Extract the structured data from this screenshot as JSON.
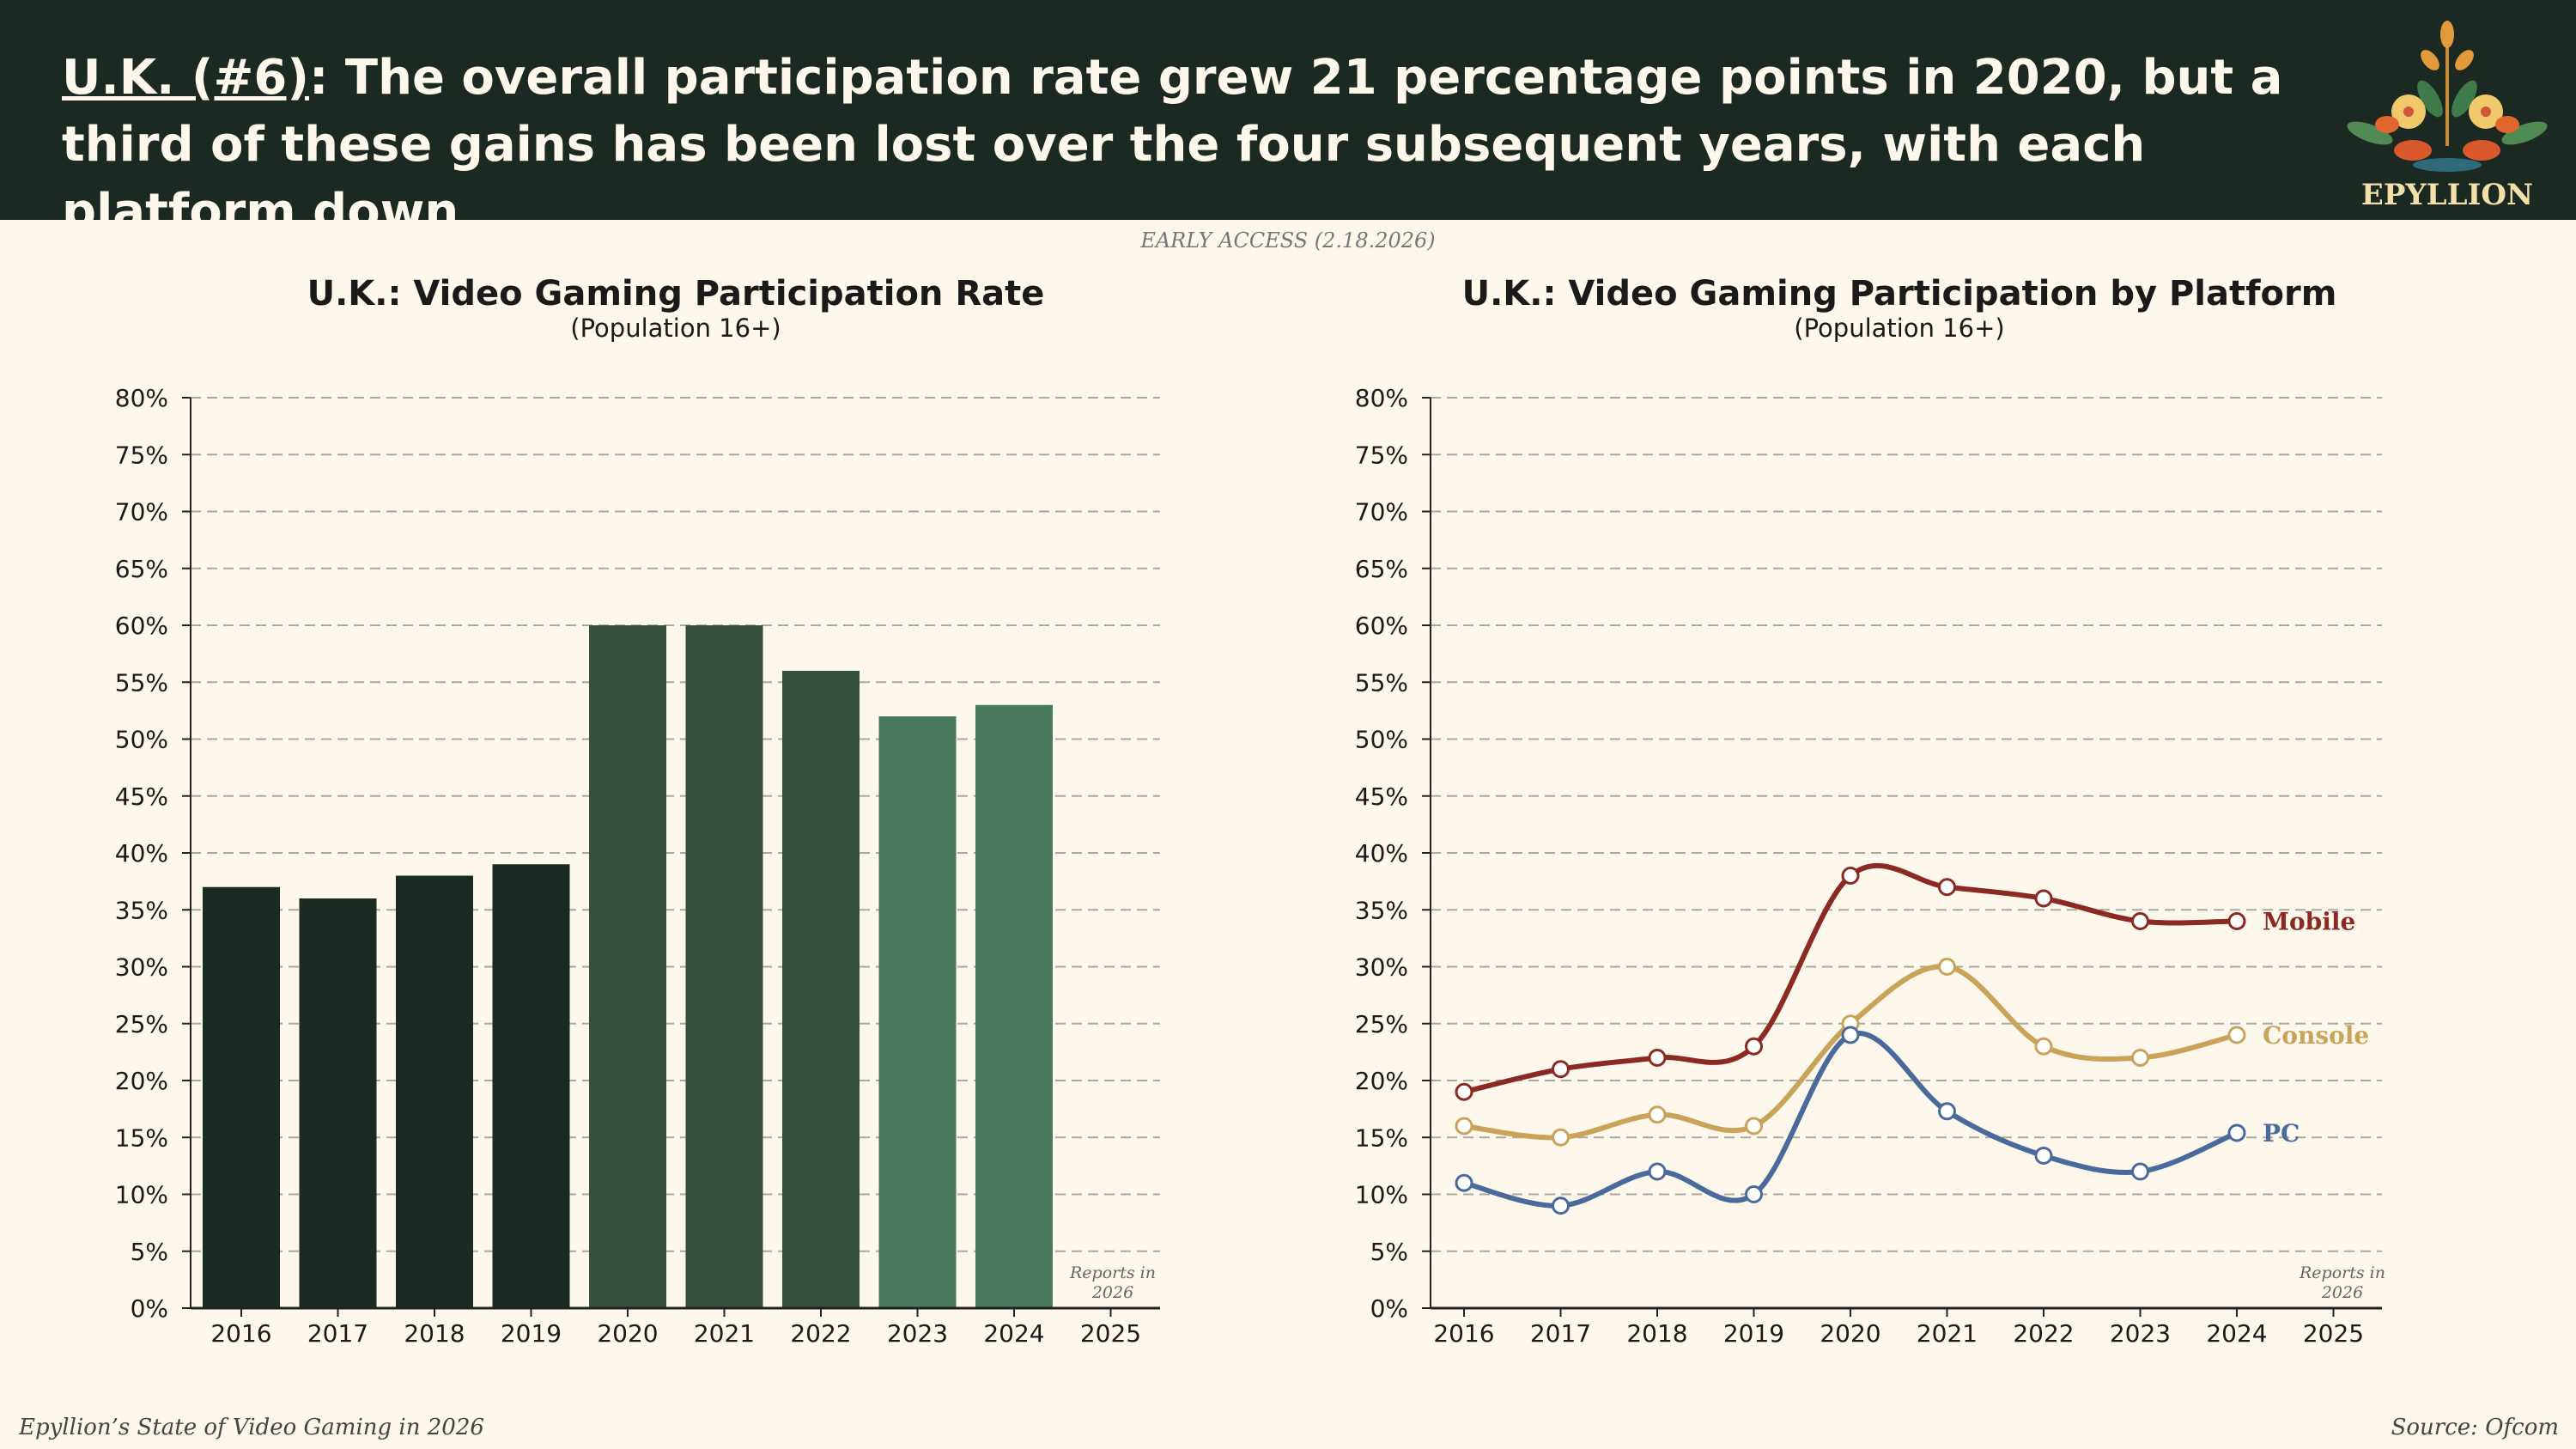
{
  "header": {
    "tag": "U.K. (#6)",
    "headline": ": The overall participation rate grew 21 percentage points in 2020, but a third of these gains has been lost over the four subsequent years, with each platform down",
    "background": "#1c2822"
  },
  "logo": {
    "text": "EPYLLION"
  },
  "early_access": "EARLY ACCESS (2.18.2026)",
  "footer": {
    "left": "Epyllion’s State of Video Gaming in 2026",
    "right": "Source: Ofcom"
  },
  "chart_data": [
    {
      "type": "bar",
      "title": "U.K.: Video Gaming Participation Rate",
      "subtitle": "(Population 16+)",
      "categories": [
        "2016",
        "2017",
        "2018",
        "2019",
        "2020",
        "2021",
        "2022",
        "2023",
        "2024",
        "2025"
      ],
      "values": [
        37,
        36,
        38,
        39,
        60,
        60,
        56,
        52,
        53,
        null
      ],
      "bar_colors": [
        "#1b2a22",
        "#1b2a22",
        "#1b2a22",
        "#1b2a22",
        "#34503f",
        "#34503f",
        "#34503f",
        "#4a7a5f",
        "#4a7a5f",
        null
      ],
      "ylim": [
        0,
        80
      ],
      "yticks": [
        "0%",
        "5%",
        "10%",
        "15%",
        "20%",
        "25%",
        "30%",
        "35%",
        "40%",
        "45%",
        "50%",
        "55%",
        "60%",
        "65%",
        "70%",
        "75%",
        "80%"
      ],
      "grid": true,
      "annotation": [
        "Reports in",
        "2026"
      ]
    },
    {
      "type": "line",
      "title": "U.K.: Video Gaming Participation by Platform",
      "subtitle": "(Population 16+)",
      "categories": [
        "2016",
        "2017",
        "2018",
        "2019",
        "2020",
        "2021",
        "2022",
        "2023",
        "2024",
        "2025"
      ],
      "series": [
        {
          "name": "Mobile",
          "color": "#8b2a24",
          "values": [
            19,
            21,
            22,
            23,
            38,
            37,
            36,
            34,
            34,
            null
          ]
        },
        {
          "name": "Console",
          "color": "#c9a35a",
          "values": [
            16,
            15,
            17,
            16,
            25,
            30,
            23,
            22,
            24,
            null
          ]
        },
        {
          "name": "PC",
          "color": "#4a6a9c",
          "values": [
            11,
            9,
            12,
            10,
            24,
            17.3,
            13.4,
            12,
            15.4,
            null
          ]
        }
      ],
      "ylim": [
        0,
        80
      ],
      "yticks": [
        "0%",
        "5%",
        "10%",
        "15%",
        "20%",
        "25%",
        "30%",
        "35%",
        "40%",
        "45%",
        "50%",
        "55%",
        "60%",
        "65%",
        "70%",
        "75%",
        "80%"
      ],
      "grid": true,
      "legend": "inline-right",
      "annotation": [
        "Reports in",
        "2026"
      ]
    }
  ]
}
